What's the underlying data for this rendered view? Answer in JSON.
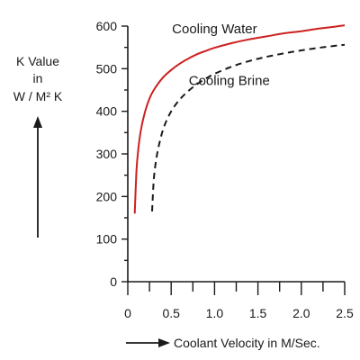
{
  "chart_data": {
    "type": "line",
    "x_ticks": [
      0,
      0.5,
      1.0,
      1.5,
      2.0,
      2.5
    ],
    "x_tick_labels": [
      "0",
      "0.5",
      "1.0",
      "1.5",
      "2.0",
      "2.5"
    ],
    "y_ticks": [
      0,
      100,
      200,
      300,
      400,
      500,
      600
    ],
    "y_tick_labels": [
      "0",
      "100",
      "200",
      "300",
      "400",
      "500",
      "600"
    ],
    "xlim": [
      0,
      2.5
    ],
    "ylim": [
      0,
      600
    ],
    "xlabel": "Coolant Velocity in M/Sec.",
    "ylabel_lines": [
      "K Value",
      "in",
      "W / M² K"
    ],
    "grid": false,
    "legend": "none",
    "series": [
      {
        "name": "Cooling Water",
        "color": "#cc2020",
        "dash": "solid",
        "x": [
          0.08,
          0.1,
          0.12,
          0.15,
          0.2,
          0.25,
          0.3,
          0.4,
          0.5,
          0.6,
          0.7,
          0.8,
          0.9,
          1.0,
          1.2,
          1.4,
          1.6,
          1.8,
          2.0,
          2.2,
          2.4,
          2.5
        ],
        "y": [
          160,
          260,
          310,
          355,
          400,
          430,
          450,
          478,
          497,
          512,
          524,
          534,
          542,
          549,
          560,
          569,
          576,
          583,
          588,
          594,
          599,
          602
        ]
      },
      {
        "name": "Cooling Brine",
        "color": "#1a1a1a",
        "dash": "dashed",
        "x": [
          0.28,
          0.3,
          0.33,
          0.37,
          0.42,
          0.5,
          0.6,
          0.7,
          0.8,
          0.9,
          1.0,
          1.2,
          1.4,
          1.6,
          1.8,
          2.0,
          2.2,
          2.4,
          2.5
        ],
        "y": [
          165,
          240,
          290,
          330,
          365,
          400,
          428,
          448,
          464,
          477,
          488,
          505,
          518,
          528,
          536,
          543,
          549,
          554,
          556
        ]
      }
    ]
  }
}
